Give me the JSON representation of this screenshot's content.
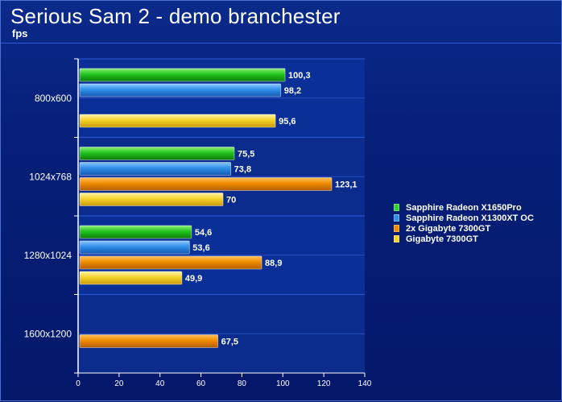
{
  "header": {
    "title": "Serious Sam 2 - demo branchester",
    "subtitle": "fps"
  },
  "chart_data": {
    "type": "bar",
    "orientation": "horizontal",
    "categories": [
      "800x600",
      "1024x768",
      "1280x1024",
      "1600x1200"
    ],
    "series": [
      {
        "name": "Sapphire Radeon X1650Pro",
        "color": "#2fd12f",
        "values": [
          100.3,
          75.5,
          54.6,
          null
        ]
      },
      {
        "name": "Sapphire Radeon X1300XT OC",
        "color": "#2f8fe8",
        "values": [
          98.2,
          73.8,
          53.6,
          null
        ]
      },
      {
        "name": "2x Gigabyte 7300GT",
        "color": "#f08c00",
        "values": [
          null,
          123.1,
          88.9,
          67.5
        ]
      },
      {
        "name": "Gigabyte 7300GT",
        "color": "#f6d22a",
        "values": [
          95.6,
          70,
          49.9,
          null
        ]
      }
    ],
    "data_labels": [
      [
        "100,3",
        "98,2",
        null,
        "95,6"
      ],
      [
        "75,5",
        "73,8",
        "123,1",
        "70"
      ],
      [
        "54,6",
        "53,6",
        "88,9",
        "49,9"
      ],
      [
        null,
        null,
        "67,5",
        null
      ]
    ],
    "xlim": [
      0,
      140
    ],
    "xticks": [
      "0",
      "20",
      "40",
      "60",
      "80",
      "100",
      "120",
      "140"
    ],
    "xlabel": "",
    "ylabel": "",
    "legend_position": "right",
    "grid": true
  }
}
